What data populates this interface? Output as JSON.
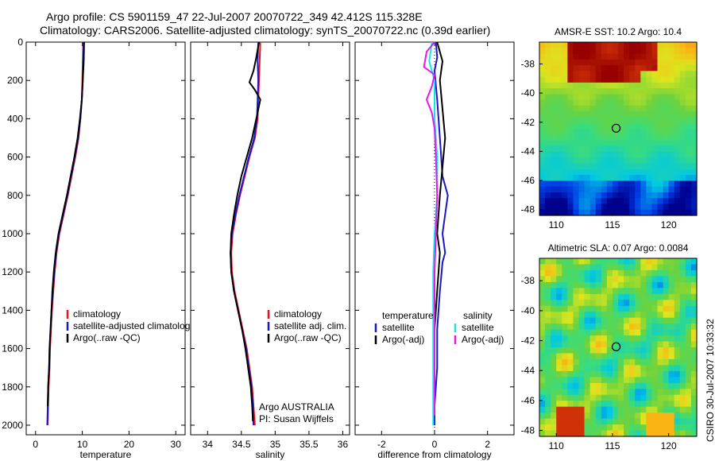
{
  "header": {
    "line1": "Argo profile: CS 5901159_47 22-Jul-2007 20070722_349 42.412S 115.328E",
    "line2": "Climatology: CARS2006. Satellite-adjusted climatology: synTS_20070722.nc (0.39d earlier)"
  },
  "side_label": "CSIRO 30-Jul-2007 10:33:32",
  "colors": {
    "red": "#e8141e",
    "blue": "#1818c8",
    "black": "#000000",
    "cyan": "#10e8e8",
    "magenta": "#e818e8"
  },
  "chart_data": [
    {
      "type": "line",
      "panel": "temperature",
      "xlabel": "temperature",
      "xlim": [
        -2,
        32
      ],
      "ylim": [
        0,
        2050
      ],
      "y_reversed": true,
      "xticks": [
        0,
        10,
        20,
        30
      ],
      "yticks": [
        0,
        200,
        400,
        600,
        800,
        1000,
        1200,
        1400,
        1600,
        1800,
        2000
      ],
      "series": [
        {
          "name": "climatology",
          "color": "#e8141e",
          "points": [
            [
              10.2,
              0
            ],
            [
              10.1,
              100
            ],
            [
              10.0,
              200
            ],
            [
              9.9,
              300
            ],
            [
              9.6,
              400
            ],
            [
              9.2,
              500
            ],
            [
              8.5,
              600
            ],
            [
              7.7,
              700
            ],
            [
              6.9,
              800
            ],
            [
              6.0,
              900
            ],
            [
              5.1,
              1000
            ],
            [
              4.5,
              1100
            ],
            [
              4.1,
              1200
            ],
            [
              3.8,
              1300
            ],
            [
              3.5,
              1400
            ],
            [
              3.3,
              1500
            ],
            [
              3.1,
              1600
            ],
            [
              3.0,
              1700
            ],
            [
              2.8,
              1800
            ],
            [
              2.7,
              1900
            ],
            [
              2.6,
              2000
            ]
          ]
        },
        {
          "name": "satellite-adjusted climatology",
          "color": "#1818c8",
          "points": [
            [
              10.3,
              0
            ],
            [
              10.2,
              100
            ],
            [
              10.1,
              200
            ],
            [
              9.9,
              300
            ],
            [
              9.6,
              400
            ],
            [
              9.1,
              500
            ],
            [
              8.4,
              600
            ],
            [
              7.6,
              700
            ],
            [
              6.8,
              800
            ],
            [
              5.9,
              900
            ],
            [
              5.0,
              1000
            ],
            [
              4.4,
              1100
            ],
            [
              4.0,
              1200
            ],
            [
              3.7,
              1300
            ],
            [
              3.4,
              1400
            ],
            [
              3.2,
              1500
            ],
            [
              3.0,
              1600
            ],
            [
              2.9,
              1700
            ],
            [
              2.7,
              1800
            ],
            [
              2.6,
              1900
            ],
            [
              2.5,
              2000
            ]
          ]
        },
        {
          "name": "Argo(..raw -QC)",
          "color": "#000000",
          "points": [
            [
              10.4,
              0
            ],
            [
              10.3,
              100
            ],
            [
              10.1,
              200
            ],
            [
              9.9,
              300
            ],
            [
              9.5,
              400
            ],
            [
              9.0,
              500
            ],
            [
              8.3,
              600
            ],
            [
              7.5,
              700
            ],
            [
              6.7,
              800
            ],
            [
              5.8,
              900
            ],
            [
              4.9,
              1000
            ],
            [
              4.3,
              1100
            ],
            [
              3.9,
              1200
            ],
            [
              3.6,
              1300
            ],
            [
              3.4,
              1400
            ],
            [
              3.2,
              1500
            ],
            [
              3.0,
              1600
            ],
            [
              2.9,
              1700
            ],
            [
              2.7,
              1800
            ],
            [
              2.6,
              1900
            ]
          ]
        }
      ],
      "legend": {
        "position": "lower-right",
        "entries": [
          "climatology",
          "satellite-adjusted climatology",
          "Argo(..raw -QC)"
        ]
      }
    },
    {
      "type": "line",
      "panel": "salinity",
      "xlabel": "salinity",
      "xlim": [
        33.75,
        36.1
      ],
      "ylim": [
        0,
        2050
      ],
      "y_reversed": true,
      "xticks": [
        34,
        34.5,
        35,
        35.5,
        36
      ],
      "series": [
        {
          "name": "climatology",
          "color": "#e8141e",
          "points": [
            [
              34.78,
              0
            ],
            [
              34.77,
              100
            ],
            [
              34.76,
              200
            ],
            [
              34.75,
              300
            ],
            [
              34.74,
              400
            ],
            [
              34.7,
              500
            ],
            [
              34.62,
              600
            ],
            [
              34.55,
              700
            ],
            [
              34.48,
              800
            ],
            [
              34.42,
              900
            ],
            [
              34.37,
              1000
            ],
            [
              34.35,
              1100
            ],
            [
              34.36,
              1200
            ],
            [
              34.4,
              1300
            ],
            [
              34.46,
              1400
            ],
            [
              34.52,
              1500
            ],
            [
              34.58,
              1600
            ],
            [
              34.62,
              1700
            ],
            [
              34.66,
              1800
            ],
            [
              34.68,
              1900
            ],
            [
              34.7,
              2000
            ]
          ]
        },
        {
          "name": "satellite adj. clim.",
          "color": "#1818c8",
          "points": [
            [
              34.75,
              0
            ],
            [
              34.74,
              100
            ],
            [
              34.75,
              200
            ],
            [
              34.74,
              300
            ],
            [
              34.73,
              400
            ],
            [
              34.69,
              500
            ],
            [
              34.61,
              600
            ],
            [
              34.54,
              700
            ],
            [
              34.47,
              800
            ],
            [
              34.41,
              900
            ],
            [
              34.36,
              1000
            ],
            [
              34.34,
              1100
            ],
            [
              34.35,
              1200
            ],
            [
              34.39,
              1300
            ],
            [
              34.45,
              1400
            ],
            [
              34.51,
              1500
            ],
            [
              34.57,
              1600
            ],
            [
              34.61,
              1700
            ],
            [
              34.65,
              1800
            ],
            [
              34.67,
              1900
            ],
            [
              34.68,
              2000
            ]
          ]
        },
        {
          "name": "Argo(..raw -QC)",
          "color": "#000000",
          "points": [
            [
              34.76,
              0
            ],
            [
              34.72,
              80
            ],
            [
              34.68,
              150
            ],
            [
              34.62,
              210
            ],
            [
              34.7,
              250
            ],
            [
              34.78,
              300
            ],
            [
              34.72,
              400
            ],
            [
              34.66,
              500
            ],
            [
              34.58,
              600
            ],
            [
              34.5,
              700
            ],
            [
              34.44,
              800
            ],
            [
              34.39,
              900
            ],
            [
              34.35,
              1000
            ],
            [
              34.34,
              1100
            ],
            [
              34.35,
              1200
            ],
            [
              34.39,
              1300
            ],
            [
              34.45,
              1400
            ],
            [
              34.51,
              1500
            ],
            [
              34.56,
              1600
            ],
            [
              34.6,
              1700
            ],
            [
              34.64,
              1800
            ],
            [
              34.66,
              1900
            ],
            [
              34.67,
              1980
            ]
          ]
        }
      ],
      "legend": {
        "position": "lower-right",
        "entries": [
          "climatology",
          "satellite adj. clim.",
          "Argo(..raw -QC)"
        ]
      },
      "annotation": [
        "Argo AUSTRALIA",
        "PI: Susan Wijffels"
      ]
    },
    {
      "type": "line",
      "panel": "difference",
      "xlabel": "difference from climatology",
      "xlim": [
        -3,
        3
      ],
      "ylim": [
        0,
        2050
      ],
      "y_reversed": true,
      "xticks": [
        -2,
        0,
        2
      ],
      "series": [
        {
          "name": "temperature satellite",
          "color": "#1818c8",
          "points": [
            [
              0.05,
              0
            ],
            [
              0.1,
              80
            ],
            [
              0.0,
              150
            ],
            [
              0.1,
              300
            ],
            [
              0.2,
              500
            ],
            [
              0.3,
              700
            ],
            [
              0.5,
              800
            ],
            [
              0.4,
              900
            ],
            [
              0.3,
              1000
            ],
            [
              0.4,
              1100
            ],
            [
              0.3,
              1150
            ],
            [
              0.2,
              1300
            ],
            [
              0.1,
              1500
            ],
            [
              0.1,
              1700
            ],
            [
              0.0,
              1900
            ],
            [
              0.0,
              2000
            ]
          ]
        },
        {
          "name": "temperature Argo(-adj)",
          "color": "#000000",
          "points": [
            [
              0.1,
              0
            ],
            [
              0.3,
              100
            ],
            [
              0.2,
              200
            ],
            [
              0.3,
              350
            ],
            [
              0.4,
              500
            ],
            [
              0.3,
              650
            ],
            [
              0.2,
              800
            ],
            [
              0.1,
              1000
            ],
            [
              0.2,
              1100
            ],
            [
              0.1,
              1300
            ],
            [
              0.0,
              1500
            ],
            [
              0.0,
              1700
            ],
            [
              0.0,
              1900
            ]
          ]
        },
        {
          "name": "salinity satellite",
          "color": "#10e8e8",
          "points": [
            [
              -0.1,
              0
            ],
            [
              -0.2,
              100
            ],
            [
              0.0,
              200
            ],
            [
              0.0,
              400
            ],
            [
              0.1,
              600
            ],
            [
              0.1,
              800
            ],
            [
              0.0,
              1000
            ],
            [
              -0.05,
              1200
            ],
            [
              -0.05,
              1500
            ],
            [
              -0.05,
              1800
            ],
            [
              -0.05,
              2000
            ]
          ]
        },
        {
          "name": "salinity Argo(-adj)",
          "color": "#e818e8",
          "points": [
            [
              0.0,
              0
            ],
            [
              -0.3,
              50
            ],
            [
              -0.4,
              130
            ],
            [
              0.0,
              170
            ],
            [
              -0.1,
              230
            ],
            [
              -0.3,
              300
            ],
            [
              -0.1,
              370
            ],
            [
              0.0,
              450
            ],
            [
              0.05,
              600
            ],
            [
              0.1,
              800
            ],
            [
              0.05,
              1000
            ],
            [
              0.0,
              1200
            ],
            [
              0.0,
              1400
            ],
            [
              0.0,
              1600
            ],
            [
              0.0,
              1800
            ],
            [
              0.0,
              1950
            ]
          ]
        }
      ],
      "legend": {
        "position": "lower-right",
        "group1_title": "temperature",
        "group1": [
          "satellite",
          "Argo(-adj)"
        ],
        "group2_title": "salinity",
        "group2": [
          "satellite",
          "Argo(-adj)"
        ]
      }
    },
    {
      "type": "heatmap",
      "panel": "sst-map",
      "title": "AMSR-E SST: 10.2 Argo: 10.4",
      "xlim": [
        108.5,
        122.5
      ],
      "ylim": [
        -48.4,
        -36.5
      ],
      "xticks": [
        110,
        115,
        120
      ],
      "yticks": [
        -38,
        -40,
        -42,
        -44,
        -46,
        -48
      ],
      "marker": {
        "lon": 115.328,
        "lat": -42.412
      }
    },
    {
      "type": "heatmap",
      "panel": "sla-map",
      "title": "Altimetric SLA: 0.07 Argo: 0.0084",
      "xlim": [
        108.5,
        122.5
      ],
      "ylim": [
        -48.4,
        -36.5
      ],
      "xticks": [
        110,
        115,
        120
      ],
      "yticks": [
        -38,
        -40,
        -42,
        -44,
        -46,
        -48
      ],
      "marker": {
        "lon": 115.328,
        "lat": -42.412
      }
    }
  ]
}
